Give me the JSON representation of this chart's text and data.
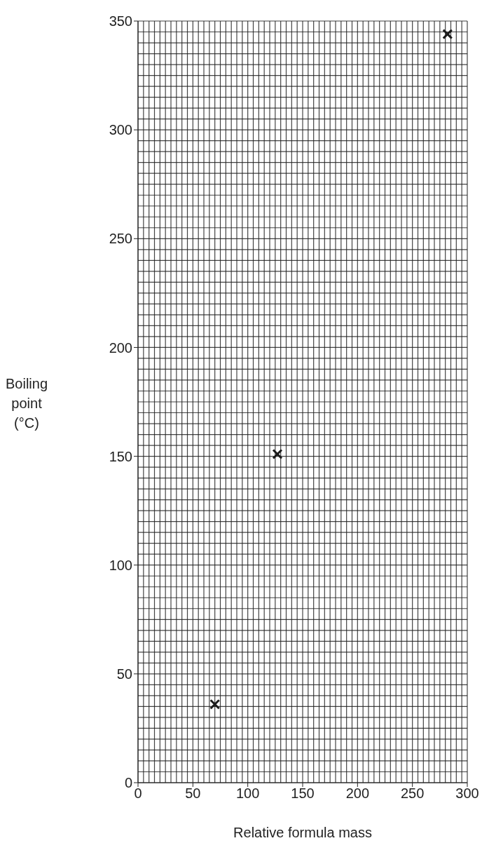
{
  "chart_data": {
    "type": "scatter",
    "xlabel": "Relative formula mass",
    "ylabel": "Boiling point (°C)",
    "x": [
      70,
      127,
      282
    ],
    "values": [
      36,
      151,
      344
    ],
    "color": "#1a1a1a",
    "marker": "cross",
    "xlim": [
      0,
      300
    ],
    "xticks": [
      0,
      50,
      100,
      150,
      200,
      250,
      300
    ],
    "ylim": [
      0,
      350
    ],
    "yticks": [
      0,
      50,
      100,
      150,
      200,
      250,
      300,
      350
    ],
    "grid": true
  }
}
